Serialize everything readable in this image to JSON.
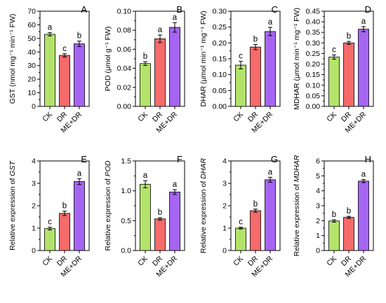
{
  "colors": {
    "CK": "#b3e36a",
    "DR": "#f76a6a",
    "ME+DR": "#a565f2",
    "axis": "#000000",
    "error_bar": "#000000"
  },
  "chart_data": [
    {
      "type": "bar",
      "panel": "A",
      "categories": [
        "CK",
        "DR",
        "ME+DR"
      ],
      "values": [
        53,
        37.5,
        46
      ],
      "errors": [
        1.2,
        1.2,
        2.0
      ],
      "letters": [
        "a",
        "c",
        "b"
      ],
      "ylabel": "GST (nmol mg⁻¹ min⁻¹ FW)",
      "ylim": [
        0,
        70
      ],
      "yticks": [
        "0",
        "10",
        "20",
        "30",
        "40",
        "50",
        "60",
        "70"
      ],
      "grid": false
    },
    {
      "type": "bar",
      "panel": "B",
      "categories": [
        "CK",
        "DR",
        "ME+DR"
      ],
      "values": [
        0.045,
        0.071,
        0.083
      ],
      "errors": [
        0.002,
        0.004,
        0.005
      ],
      "letters": [
        "b",
        "a",
        "a"
      ],
      "ylabel": "POD (μmol g⁻¹ FW)",
      "ylim": [
        0,
        0.1
      ],
      "yticks": [
        "0.00",
        "0.02",
        "0.04",
        "0.06",
        "0.08",
        "0.10"
      ],
      "grid": false
    },
    {
      "type": "bar",
      "panel": "C",
      "categories": [
        "CK",
        "DR",
        "ME+DR"
      ],
      "values": [
        0.13,
        0.187,
        0.236
      ],
      "errors": [
        0.012,
        0.008,
        0.013
      ],
      "letters": [
        "c",
        "b",
        "a"
      ],
      "ylabel": "DHAR (μmol min⁻¹ mg⁻¹ FW)",
      "ylim": [
        0,
        0.3
      ],
      "yticks": [
        "0.00",
        "0.05",
        "0.10",
        "0.15",
        "0.20",
        "0.25",
        "0.30"
      ],
      "grid": false
    },
    {
      "type": "bar",
      "panel": "D",
      "categories": [
        "CK",
        "DR",
        "ME+DR"
      ],
      "values": [
        0.233,
        0.3,
        0.365
      ],
      "errors": [
        0.01,
        0.007,
        0.012
      ],
      "letters": [
        "c",
        "b",
        "a"
      ],
      "ylabel": "MDHAR (μmol min⁻¹ mg⁻¹ FW)",
      "ylim": [
        0,
        0.45
      ],
      "yticks": [
        "0.00",
        "0.05",
        "0.10",
        "0.15",
        "0.20",
        "0.25",
        "0.30",
        "0.35",
        "0.40",
        "0.45"
      ],
      "grid": false
    },
    {
      "type": "bar",
      "panel": "E",
      "categories": [
        "CK",
        "DR",
        "ME+DR"
      ],
      "values": [
        0.98,
        1.66,
        3.08
      ],
      "errors": [
        0.06,
        0.1,
        0.13
      ],
      "letters": [
        "c",
        "b",
        "a"
      ],
      "ylabel_prefix": "Relative expression of ",
      "ylabel_gene": "GST",
      "ylim": [
        0,
        4
      ],
      "yticks": [
        "0",
        "1",
        "2",
        "3",
        "4"
      ],
      "grid": false
    },
    {
      "type": "bar",
      "panel": "F",
      "categories": [
        "CK",
        "DR",
        "ME+DR"
      ],
      "values": [
        1.11,
        0.53,
        0.98
      ],
      "errors": [
        0.06,
        0.02,
        0.04
      ],
      "letters": [
        "a",
        "b",
        "a"
      ],
      "ylabel_prefix": "Relative expression of ",
      "ylabel_gene": "POD",
      "ylim": [
        0,
        1.5
      ],
      "yticks": [
        "0.0",
        "0.5",
        "1.0",
        "1.5"
      ],
      "grid": false
    },
    {
      "type": "bar",
      "panel": "G",
      "categories": [
        "CK",
        "DR",
        "ME+DR"
      ],
      "values": [
        1.0,
        1.78,
        3.16
      ],
      "errors": [
        0.04,
        0.07,
        0.11
      ],
      "letters": [
        "c",
        "b",
        "a"
      ],
      "ylabel_prefix": "Relative expression of ",
      "ylabel_gene": "DHAR",
      "ylim": [
        0,
        4
      ],
      "yticks": [
        "0",
        "1",
        "2",
        "3",
        "4"
      ],
      "grid": false
    },
    {
      "type": "bar",
      "panel": "H",
      "categories": [
        "CK",
        "DR",
        "ME+DR"
      ],
      "values": [
        1.98,
        2.22,
        4.65
      ],
      "errors": [
        0.08,
        0.07,
        0.1
      ],
      "letters": [
        "b",
        "b",
        "a"
      ],
      "ylabel_prefix": "Relative expression of ",
      "ylabel_gene": "MDHAR",
      "ylim": [
        0,
        6
      ],
      "yticks": [
        "0",
        "1",
        "2",
        "3",
        "4",
        "5",
        "6"
      ],
      "grid": false
    }
  ]
}
